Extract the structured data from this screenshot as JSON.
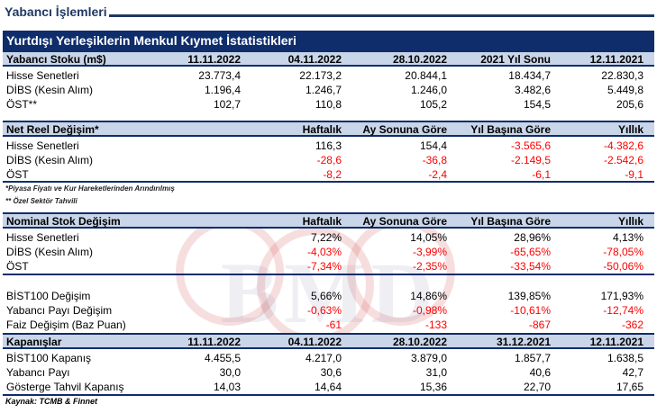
{
  "page": {
    "title": "Yabancı İşlemleri"
  },
  "report_title": "Yurtdışı Yerleşiklerin Menkul Kıymet İstatistikleri",
  "stock": {
    "header": [
      "Yabancı Stoku (m$)",
      "11.11.2022",
      "04.11.2022",
      "28.10.2022",
      "2021 Yıl Sonu",
      "12.11.2021"
    ],
    "rows": [
      [
        "Hisse Senetleri",
        "23.773,4",
        "22.173,2",
        "20.844,1",
        "18.434,7",
        "22.830,3"
      ],
      [
        "DİBS (Kesin Alım)",
        "1.196,4",
        "1.246,7",
        "1.246,0",
        "3.482,6",
        "5.449,8"
      ],
      [
        "ÖST**",
        "102,7",
        "110,8",
        "105,2",
        "154,5",
        "205,6"
      ]
    ]
  },
  "net_real": {
    "header": [
      "Net Reel Değişim*",
      "Haftalık",
      "Ay Sonuna Göre",
      "Yıl Başına Göre",
      "Yıllık"
    ],
    "rows": [
      [
        "Hisse Senetleri",
        "116,3",
        "154,4",
        "-3.565,6",
        "-4.382,6"
      ],
      [
        "DİBS (Kesin Alım)",
        "-28,6",
        "-36,8",
        "-2.149,5",
        "-2.542,6"
      ],
      [
        "ÖST",
        "-8,2",
        "-2,4",
        "-6,1",
        "-9,1"
      ]
    ]
  },
  "notes": [
    "*Piyasa Fiyatı ve Kur Hareketlerinden Arındırılmış",
    "** Özel Sektör Tahvili"
  ],
  "nominal": {
    "header": [
      "Nominal Stok Değişim",
      "Haftalık",
      "Ay Sonuna Göre",
      "Yıl Başına Göre",
      "Yıllık"
    ],
    "rows": [
      [
        "Hisse Senetleri",
        "7,22%",
        "14,05%",
        "28,96%",
        "4,13%"
      ],
      [
        "DİBS (Kesin Alım)",
        "-4,03%",
        "-3,99%",
        "-65,65%",
        "-78,05%"
      ],
      [
        "ÖST",
        "-7,34%",
        "-2,35%",
        "-33,54%",
        "-50,06%"
      ]
    ]
  },
  "changes": {
    "rows": [
      [
        "BİST100 Değişim",
        "5,66%",
        "14,86%",
        "139,85%",
        "171,93%"
      ],
      [
        "Yabancı Payı Değişim",
        "-0,63%",
        "-0,98%",
        "-10,61%",
        "-12,74%"
      ],
      [
        "Faiz Değişim (Baz Puan)",
        "-61",
        "-133",
        "-867",
        "-362"
      ]
    ]
  },
  "closings": {
    "header": [
      "Kapanışlar",
      "11.11.2022",
      "04.11.2022",
      "28.10.2022",
      "31.12.2021",
      "12.11.2021"
    ],
    "rows": [
      [
        "BİST100 Kapanış",
        "4.455,5",
        "4.217,0",
        "3.879,0",
        "1.857,7",
        "1.638,5"
      ],
      [
        "Yabancı Payı",
        "30,0",
        "30,6",
        "31,0",
        "40,6",
        "42,7"
      ],
      [
        "Gösterge Tahvil Kapanış",
        "14,03",
        "14,64",
        "15,36",
        "22,70",
        "17,65"
      ]
    ]
  },
  "source": "Kaynak: TCMB & Finnet",
  "colors": {
    "navy": "#0f2d6b",
    "header_fill": "#c9d5e8",
    "negative": "#ff0000"
  }
}
